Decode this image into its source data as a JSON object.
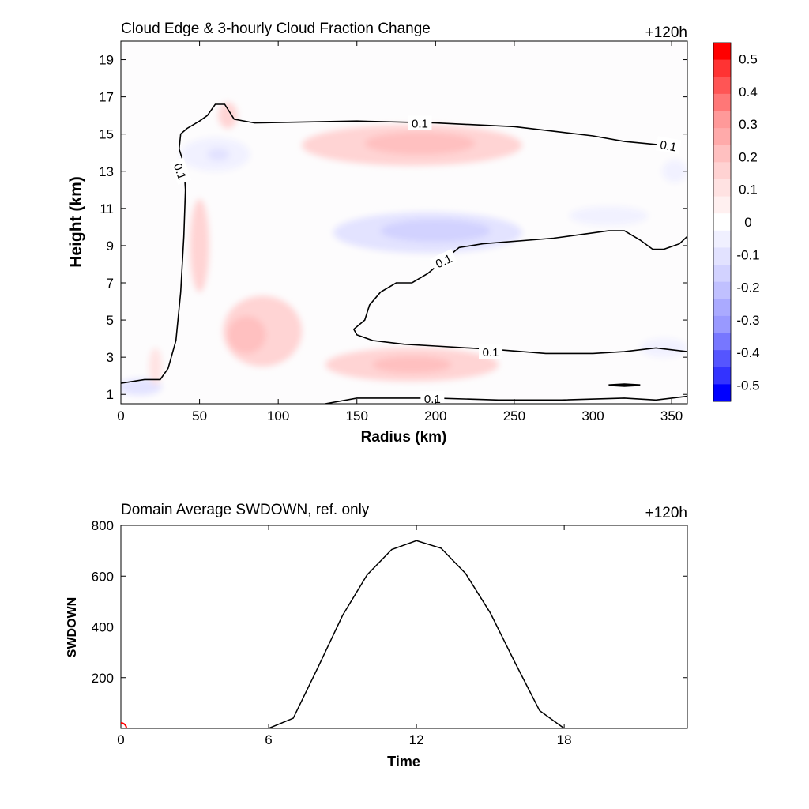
{
  "chart_data": [
    {
      "type": "heatmap",
      "title": "Cloud Edge & 3-hourly Cloud Fraction Change",
      "time_label": "+120h",
      "xlabel": "Radius (km)",
      "ylabel": "Height (km)",
      "xlim": [
        0,
        360
      ],
      "ylim": [
        0.5,
        20
      ],
      "xticks": [
        "0",
        "50",
        "100",
        "150",
        "200",
        "250",
        "300",
        "350"
      ],
      "yticks": [
        "1",
        "3",
        "5",
        "7",
        "9",
        "11",
        "13",
        "15",
        "17",
        "19"
      ],
      "colorbar": {
        "levels": [
          0.55,
          0.5,
          0.45,
          0.4,
          0.35,
          0.3,
          0.25,
          0.2,
          0.15,
          0.1,
          0.05,
          -0.05,
          -0.1,
          -0.15,
          -0.2,
          -0.25,
          -0.3,
          -0.35,
          -0.4,
          -0.45,
          -0.5,
          -0.55
        ],
        "labels": [
          "0.5",
          "0.4",
          "0.3",
          "0.2",
          "0.1",
          "0",
          "-0.1",
          "-0.2",
          "-0.3",
          "-0.4",
          "-0.5"
        ],
        "colors": [
          "#ff0000",
          "#ff3333",
          "#ff5555",
          "#ff7777",
          "#ff9999",
          "#ffaaaa",
          "#ffc0c0",
          "#ffd2d2",
          "#ffe2e2",
          "#fff0f0",
          "#ffffff",
          "#f0f0ff",
          "#e2e2ff",
          "#d2d2ff",
          "#c0c0ff",
          "#aaaaff",
          "#9999ff",
          "#7777ff",
          "#5555ff",
          "#3333ff",
          "#0000ff"
        ]
      },
      "blobs": [
        {
          "x": 185,
          "y": 14.4,
          "rx": 70,
          "ry": 1.1,
          "v": 0.15
        },
        {
          "x": 190,
          "y": 14.5,
          "rx": 35,
          "ry": 0.6,
          "v": 0.2
        },
        {
          "x": 195,
          "y": 9.7,
          "rx": 60,
          "ry": 1.1,
          "v": -0.15
        },
        {
          "x": 200,
          "y": 9.8,
          "rx": 35,
          "ry": 0.6,
          "v": -0.2
        },
        {
          "x": 90,
          "y": 4.4,
          "rx": 25,
          "ry": 1.9,
          "v": 0.15
        },
        {
          "x": 80,
          "y": 4.2,
          "rx": 12,
          "ry": 1.0,
          "v": 0.2
        },
        {
          "x": 185,
          "y": 2.6,
          "rx": 55,
          "ry": 0.9,
          "v": 0.15
        },
        {
          "x": 185,
          "y": 2.6,
          "rx": 25,
          "ry": 0.45,
          "v": 0.2
        },
        {
          "x": 50,
          "y": 9.0,
          "rx": 6,
          "ry": 2.5,
          "v": 0.15
        },
        {
          "x": 68,
          "y": 16.0,
          "rx": 6,
          "ry": 0.7,
          "v": 0.15
        },
        {
          "x": 60,
          "y": 13.9,
          "rx": 22,
          "ry": 0.9,
          "v": -0.1
        },
        {
          "x": 62,
          "y": 13.9,
          "rx": 7,
          "ry": 0.35,
          "v": -0.15
        },
        {
          "x": 12,
          "y": 1.4,
          "rx": 14,
          "ry": 0.45,
          "v": -0.15
        },
        {
          "x": 310,
          "y": 10.6,
          "rx": 25,
          "ry": 0.5,
          "v": -0.1
        },
        {
          "x": 352,
          "y": 13.0,
          "rx": 8,
          "ry": 0.6,
          "v": -0.1
        },
        {
          "x": 22,
          "y": 2.5,
          "rx": 4,
          "ry": 1.0,
          "v": 0.1
        },
        {
          "x": 345,
          "y": 3.5,
          "rx": 15,
          "ry": 0.5,
          "v": -0.1
        }
      ],
      "contours": [
        {
          "level": "0.1",
          "points": [
            [
              0,
              1.6
            ],
            [
              15,
              1.8
            ],
            [
              25,
              1.8
            ],
            [
              30,
              2.4
            ],
            [
              35,
              3.9
            ],
            [
              38,
              6.5
            ],
            [
              40,
              9.5
            ],
            [
              41,
              12.0
            ],
            [
              40,
              13.4
            ],
            [
              37,
              14.2
            ],
            [
              38,
              15.0
            ],
            [
              42,
              15.3
            ],
            [
              50,
              15.7
            ],
            [
              55,
              16.0
            ],
            [
              60,
              16.6
            ],
            [
              66,
              16.6
            ],
            [
              72,
              15.8
            ],
            [
              85,
              15.6
            ],
            [
              150,
              15.7
            ],
            [
              200,
              15.6
            ],
            [
              250,
              15.4
            ],
            [
              280,
              15.1
            ],
            [
              300,
              14.9
            ],
            [
              320,
              14.6
            ],
            [
              345,
              14.4
            ]
          ]
        },
        {
          "level": "0.1",
          "points": [
            [
              360,
              9.5
            ],
            [
              355,
              9.1
            ],
            [
              345,
              8.8
            ],
            [
              338,
              8.8
            ],
            [
              330,
              9.3
            ],
            [
              320,
              9.8
            ],
            [
              310,
              9.8
            ],
            [
              275,
              9.4
            ],
            [
              230,
              9.1
            ],
            [
              215,
              8.9
            ],
            [
              205,
              8.2
            ],
            [
              195,
              7.5
            ],
            [
              185,
              7.0
            ],
            [
              175,
              7.0
            ],
            [
              165,
              6.5
            ],
            [
              158,
              5.8
            ],
            [
              155,
              5.0
            ],
            [
              148,
              4.5
            ],
            [
              150,
              4.2
            ],
            [
              160,
              3.9
            ],
            [
              180,
              3.7
            ],
            [
              200,
              3.6
            ],
            [
              240,
              3.4
            ],
            [
              270,
              3.2
            ],
            [
              300,
              3.2
            ],
            [
              320,
              3.3
            ],
            [
              340,
              3.5
            ],
            [
              360,
              3.3
            ]
          ]
        },
        {
          "level": "0.1",
          "points": [
            [
              130,
              0.5
            ],
            [
              150,
              0.8
            ],
            [
              200,
              0.8
            ],
            [
              240,
              0.7
            ],
            [
              280,
              0.7
            ],
            [
              320,
              0.8
            ],
            [
              340,
              0.7
            ],
            [
              360,
              0.9
            ]
          ]
        },
        {
          "level": "",
          "points": [
            [
              310,
              1.5
            ],
            [
              320,
              1.55
            ],
            [
              330,
              1.5
            ],
            [
              320,
              1.45
            ],
            [
              310,
              1.5
            ]
          ]
        }
      ],
      "contour_labels": [
        {
          "text": "0.1",
          "x": 190,
          "y": 15.6,
          "rot": 0
        },
        {
          "text": "0.1",
          "x": 348,
          "y": 14.4,
          "rot": 10
        },
        {
          "text": "0.1",
          "x": 38,
          "y": 13.0,
          "rot": 70
        },
        {
          "text": "0.1",
          "x": 205,
          "y": 8.2,
          "rot": -25
        },
        {
          "text": "0.1",
          "x": 235,
          "y": 3.3,
          "rot": 0
        },
        {
          "text": "0.1",
          "x": 198,
          "y": 0.8,
          "rot": 0
        }
      ]
    },
    {
      "type": "line",
      "title": "Domain Average SWDOWN, ref. only",
      "time_label": "+120h",
      "xlabel": "Time",
      "ylabel": "SWDOWN",
      "xlim": [
        0,
        23
      ],
      "ylim": [
        0,
        800
      ],
      "xticks": [
        "0",
        "6",
        "12",
        "18"
      ],
      "yticks": [
        "200",
        "400",
        "600",
        "800"
      ],
      "x": [
        0,
        1,
        2,
        3,
        4,
        5,
        6,
        7,
        8,
        9,
        10,
        11,
        12,
        13,
        14,
        15,
        16,
        17,
        18,
        19,
        20,
        21,
        22,
        23
      ],
      "y": [
        0,
        0,
        0,
        0,
        0,
        0,
        0,
        40,
        240,
        445,
        605,
        705,
        740,
        710,
        610,
        455,
        260,
        70,
        0,
        0,
        0,
        0,
        0,
        0
      ],
      "marker": {
        "x": 0,
        "y": 0,
        "color": "#ff0000"
      }
    }
  ]
}
